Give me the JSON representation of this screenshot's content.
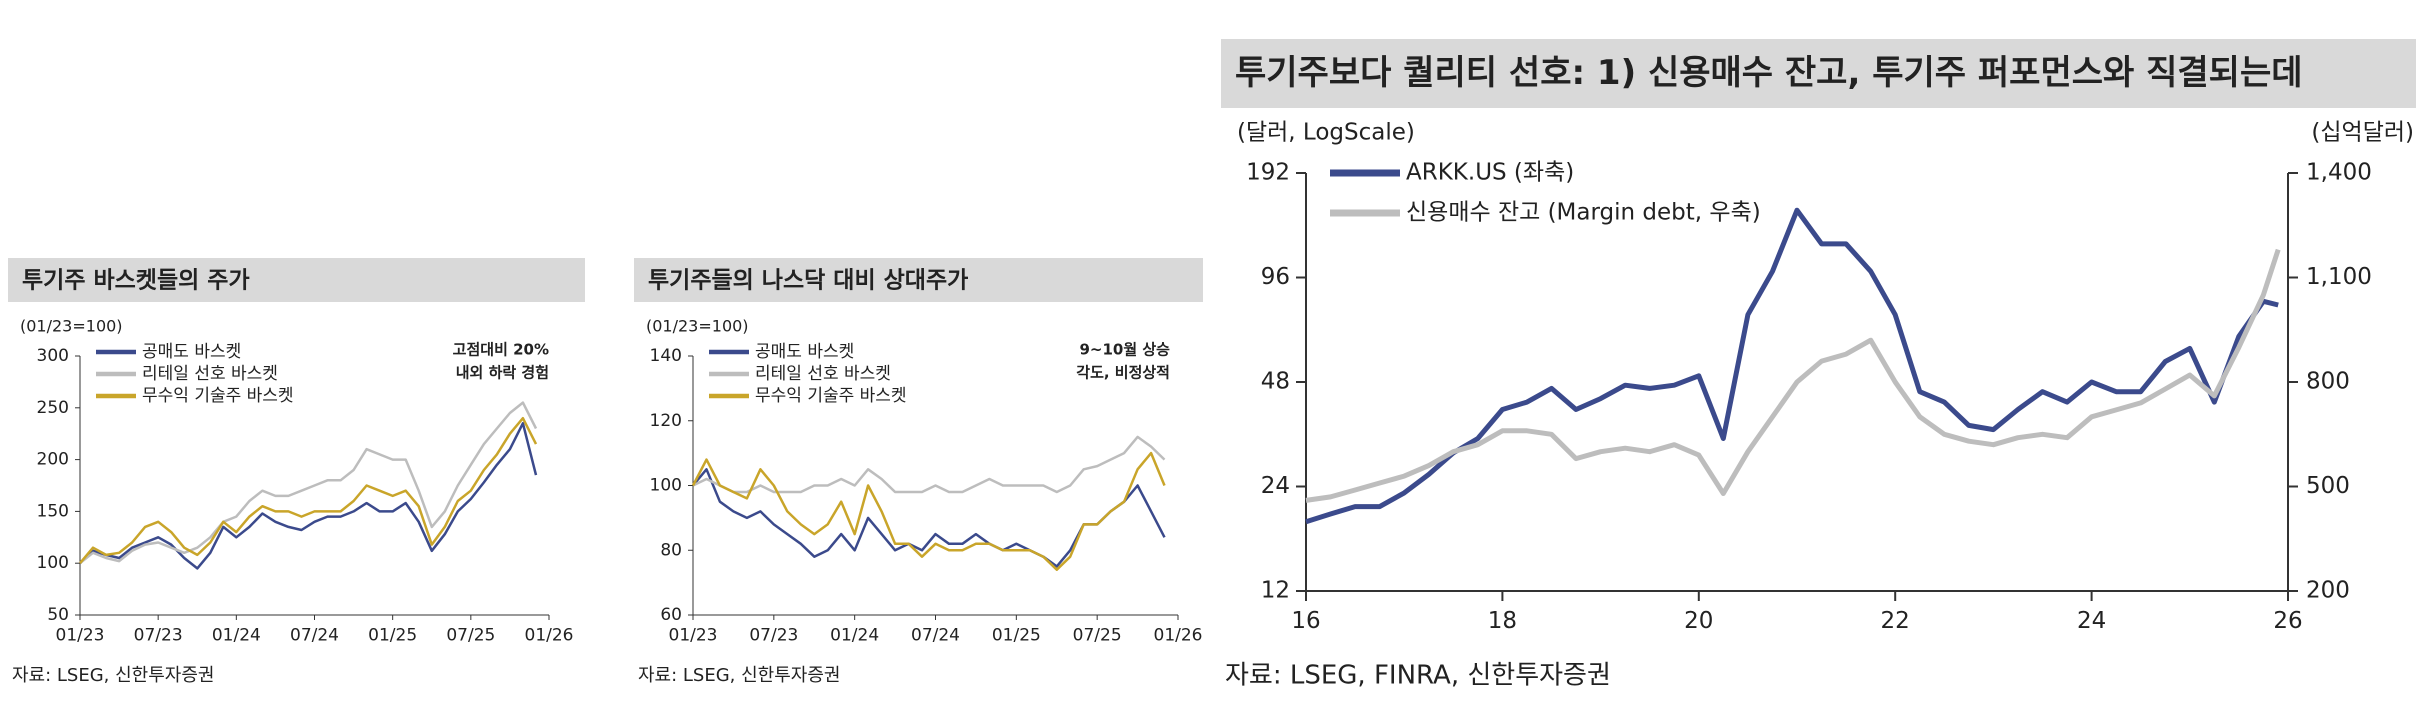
{
  "chart_data": [
    {
      "type": "line",
      "title": "투기주 바스켓들의 주가",
      "subtitle": "(01/23=100)",
      "annotation": [
        "고점대비 20%",
        "내외 하락 경험"
      ],
      "source": "자료: LSEG, 신한투자증권",
      "x": [
        "01/23",
        "02/23",
        "03/23",
        "04/23",
        "05/23",
        "06/23",
        "07/23",
        "08/23",
        "09/23",
        "10/23",
        "11/23",
        "12/23",
        "01/24",
        "02/24",
        "03/24",
        "04/24",
        "05/24",
        "06/24",
        "07/24",
        "08/24",
        "09/24",
        "10/24",
        "11/24",
        "12/24",
        "01/25",
        "02/25",
        "03/25",
        "04/25",
        "05/25",
        "06/25",
        "07/25",
        "08/25",
        "09/25",
        "10/25",
        "11/25",
        "12/25",
        "01/26"
      ],
      "xticks": [
        "01/23",
        "07/23",
        "01/24",
        "07/24",
        "01/25",
        "07/25",
        "01/26"
      ],
      "ylim": [
        50,
        300
      ],
      "yticks": [
        50,
        100,
        150,
        200,
        250,
        300
      ],
      "legend": "upper left",
      "series": [
        {
          "name": "공매도 바스켓",
          "color": "#3b4a8c",
          "values": [
            100,
            112,
            108,
            105,
            115,
            120,
            125,
            118,
            105,
            95,
            110,
            135,
            125,
            135,
            148,
            140,
            135,
            132,
            140,
            145,
            145,
            150,
            158,
            150,
            150,
            158,
            140,
            112,
            128,
            150,
            162,
            178,
            195,
            210,
            235,
            185,
            null
          ]
        },
        {
          "name": "리테일 선호 바스켓",
          "color": "#bdbdbd",
          "values": [
            100,
            110,
            105,
            102,
            112,
            118,
            120,
            115,
            110,
            115,
            125,
            140,
            145,
            160,
            170,
            165,
            165,
            170,
            175,
            180,
            180,
            190,
            210,
            205,
            200,
            200,
            170,
            135,
            150,
            175,
            195,
            215,
            230,
            245,
            255,
            230,
            null
          ]
        },
        {
          "name": "무수익 기술주 바스켓",
          "color": "#c9a52a",
          "values": [
            100,
            115,
            108,
            110,
            120,
            135,
            140,
            130,
            115,
            108,
            120,
            140,
            130,
            145,
            155,
            150,
            150,
            145,
            150,
            150,
            150,
            160,
            175,
            170,
            165,
            170,
            155,
            118,
            135,
            160,
            170,
            190,
            205,
            225,
            240,
            215,
            null
          ]
        }
      ]
    },
    {
      "type": "line",
      "title": "투기주들의 나스닥 대비 상대주가",
      "subtitle": "(01/23=100)",
      "annotation": [
        "9~10월 상승",
        "각도, 비정상적"
      ],
      "source": "자료: LSEG, 신한투자증권",
      "x": [
        "01/23",
        "02/23",
        "03/23",
        "04/23",
        "05/23",
        "06/23",
        "07/23",
        "08/23",
        "09/23",
        "10/23",
        "11/23",
        "12/23",
        "01/24",
        "02/24",
        "03/24",
        "04/24",
        "05/24",
        "06/24",
        "07/24",
        "08/24",
        "09/24",
        "10/24",
        "11/24",
        "12/24",
        "01/25",
        "02/25",
        "03/25",
        "04/25",
        "05/25",
        "06/25",
        "07/25",
        "08/25",
        "09/25",
        "10/25",
        "11/25",
        "12/25",
        "01/26"
      ],
      "xticks": [
        "01/23",
        "07/23",
        "01/24",
        "07/24",
        "01/25",
        "07/25",
        "01/26"
      ],
      "ylim": [
        60,
        140
      ],
      "yticks": [
        60,
        80,
        100,
        120,
        140
      ],
      "legend": "upper left",
      "series": [
        {
          "name": "공매도 바스켓",
          "color": "#3b4a8c",
          "values": [
            100,
            105,
            95,
            92,
            90,
            92,
            88,
            85,
            82,
            78,
            80,
            85,
            80,
            90,
            85,
            80,
            82,
            80,
            85,
            82,
            82,
            85,
            82,
            80,
            82,
            80,
            78,
            75,
            80,
            88,
            88,
            92,
            95,
            100,
            92,
            84,
            null
          ]
        },
        {
          "name": "리테일 선호 바스켓",
          "color": "#bdbdbd",
          "values": [
            100,
            102,
            100,
            98,
            98,
            100,
            98,
            98,
            98,
            100,
            100,
            102,
            100,
            105,
            102,
            98,
            98,
            98,
            100,
            98,
            98,
            100,
            102,
            100,
            100,
            100,
            100,
            98,
            100,
            105,
            106,
            108,
            110,
            115,
            112,
            108,
            null
          ]
        },
        {
          "name": "무수익 기술주 바스켓",
          "color": "#c9a52a",
          "values": [
            100,
            108,
            100,
            98,
            96,
            105,
            100,
            92,
            88,
            85,
            88,
            95,
            85,
            100,
            92,
            82,
            82,
            78,
            82,
            80,
            80,
            82,
            82,
            80,
            80,
            80,
            78,
            74,
            78,
            88,
            88,
            92,
            95,
            105,
            110,
            100,
            null
          ]
        }
      ]
    },
    {
      "type": "line",
      "title": "투기주보다 퀄리티 선호: 1) 신용매수 잔고, 투기주 퍼포먼스와 직결되는데",
      "ylabel": "(달러, LogScale)",
      "y2label": "(십억달러)",
      "source": "자료: LSEG, FINRA, 신한투자증권",
      "x": [
        16,
        16.25,
        16.5,
        16.75,
        17,
        17.25,
        17.5,
        17.75,
        18,
        18.25,
        18.5,
        18.75,
        19,
        19.25,
        19.5,
        19.75,
        20,
        20.25,
        20.5,
        20.75,
        21,
        21.25,
        21.5,
        21.75,
        22,
        22.25,
        22.5,
        22.75,
        23,
        23.25,
        23.5,
        23.75,
        24,
        24.25,
        24.5,
        24.75,
        25,
        25.25,
        25.5,
        25.75,
        25.9
      ],
      "xlim": [
        16,
        26
      ],
      "xticks": [
        16,
        18,
        20,
        22,
        24,
        26
      ],
      "ylim": [
        12,
        192
      ],
      "yticks": [
        12,
        24,
        48,
        96,
        192
      ],
      "log_y": true,
      "y2lim": [
        200,
        1400
      ],
      "y2ticks": [
        200,
        500,
        800,
        {
          "value": 1100,
          "label": "1,100"
        },
        {
          "value": 1400,
          "label": "1,400"
        }
      ],
      "legend": "upper left",
      "series": [
        {
          "name": "ARKK.US (좌축)",
          "color": "#3b4a8c",
          "values": [
            19,
            20,
            21,
            21,
            23,
            26,
            30,
            33,
            40,
            42,
            46,
            40,
            43,
            47,
            46,
            47,
            50,
            33,
            75,
            100,
            150,
            120,
            120,
            100,
            75,
            45,
            42,
            36,
            35,
            40,
            45,
            42,
            48,
            45,
            45,
            55,
            60,
            42,
            65,
            82,
            80
          ]
        },
        {
          "name": "신용매수 잔고 (Margin debt, 우축)",
          "color": "#bdbdbd",
          "axis": "y2",
          "values": [
            460,
            470,
            490,
            510,
            530,
            560,
            600,
            620,
            660,
            660,
            650,
            580,
            600,
            610,
            600,
            620,
            590,
            480,
            600,
            700,
            800,
            860,
            880,
            920,
            800,
            700,
            650,
            630,
            620,
            640,
            650,
            640,
            700,
            720,
            740,
            780,
            820,
            760,
            900,
            1050,
            1180
          ]
        }
      ]
    }
  ]
}
